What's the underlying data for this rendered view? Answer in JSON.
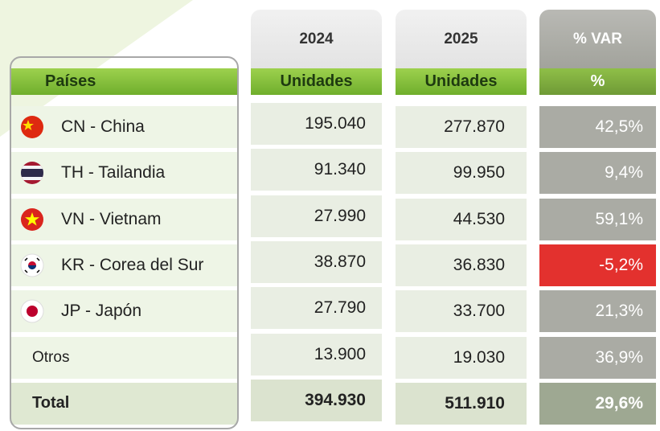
{
  "header": {
    "years": [
      "2024",
      "2025",
      "% VAR"
    ],
    "subheader": [
      "Países",
      "Unidades",
      "Unidades",
      "%"
    ]
  },
  "table": {
    "rows": [
      [
        "CN - China",
        "195.040",
        "277.870",
        "42,5%"
      ],
      [
        "TH - Tailandia",
        "91.340",
        "99.950",
        "9,4%"
      ],
      [
        "VN - Vietnam",
        "27.990",
        "44.530",
        "59,1%"
      ],
      [
        "KR - Corea del Sur",
        "38.870",
        "36.830",
        "-5,2%"
      ],
      [
        "JP - Japón",
        "27.790",
        "33.700",
        "21,3%"
      ],
      [
        "Otros",
        "13.900",
        "19.030",
        "36,9%"
      ],
      [
        "Total",
        "394.930",
        "511.910",
        "29,6%"
      ]
    ]
  }
}
